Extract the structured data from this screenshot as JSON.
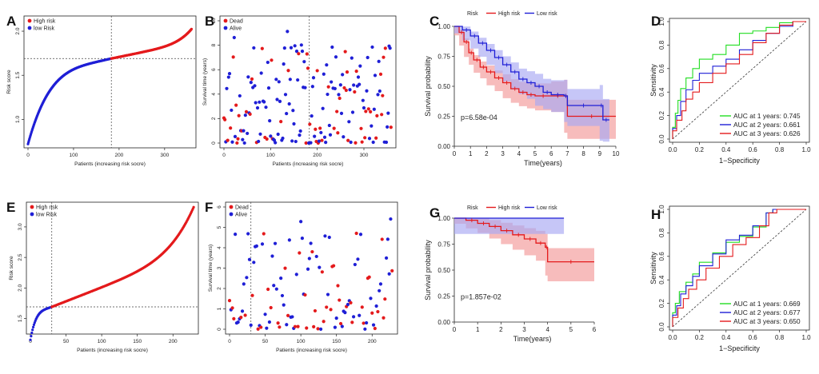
{
  "colors": {
    "red": "#e41a1c",
    "blue": "#1f1fd6",
    "green": "#22dd22",
    "redfill": "#f4a0a0",
    "bluefill": "#a7a7f2",
    "axis": "#222222"
  },
  "panels": [
    {
      "id": "A",
      "row": 0,
      "type": "riskcurve",
      "n": 360,
      "cut": 183,
      "ymin": 0.75,
      "ymax": 2.1,
      "vmin": 0.72,
      "vcut": 1.69,
      "vmax": 2.03,
      "xticks": [
        0,
        100,
        200,
        300
      ],
      "yticks": [
        1.0,
        1.5,
        2.0
      ],
      "yticklabels": [
        "1.0",
        "1.5",
        "2.0"
      ],
      "ylabel": "Risk score",
      "xlabel": "Patients (increasing risk socre)",
      "legend": [
        {
          "label": "High risk",
          "color": "red"
        },
        {
          "label": "low Risk",
          "color": "blue"
        }
      ]
    },
    {
      "id": "B",
      "row": 0,
      "type": "survscatter",
      "n": 360,
      "cut": 183,
      "ymax": 10,
      "yticks": [
        0,
        2,
        4,
        6,
        8,
        10
      ],
      "xticks": [
        0,
        100,
        200,
        300
      ],
      "ylabel": "Survival time (years)",
      "xlabel": "Patients (increasing risk socre)",
      "legend": [
        {
          "label": "Dead",
          "color": "red"
        },
        {
          "label": "Alive",
          "color": "blue"
        }
      ]
    },
    {
      "id": "C",
      "row": 0,
      "type": "km",
      "xmax": 10,
      "xticks": [
        0,
        1,
        2,
        3,
        4,
        5,
        6,
        7,
        8,
        9,
        10
      ],
      "yticks": [
        0.0,
        0.25,
        0.5,
        0.75,
        1.0
      ],
      "yticklabels": [
        "0.00",
        "0.25",
        "0.50",
        "0.75",
        "1.00"
      ],
      "ylabel": "Survival probability",
      "xlabel": "Time(years)",
      "pvalue": "p=6.58e-04",
      "legend_title": "Risk",
      "legend": [
        "High risk",
        "Low risk"
      ],
      "high": [
        [
          0,
          1.0
        ],
        [
          0.3,
          0.95
        ],
        [
          0.6,
          0.87
        ],
        [
          0.9,
          0.78
        ],
        [
          1.2,
          0.72
        ],
        [
          1.6,
          0.66
        ],
        [
          2.0,
          0.62
        ],
        [
          2.5,
          0.57
        ],
        [
          3.0,
          0.53
        ],
        [
          3.5,
          0.48
        ],
        [
          4.0,
          0.45
        ],
        [
          4.5,
          0.43
        ],
        [
          5.0,
          0.42
        ],
        [
          6.0,
          0.42
        ],
        [
          6.8,
          0.42
        ],
        [
          7.0,
          0.25
        ],
        [
          10.0,
          0.25
        ]
      ],
      "low": [
        [
          0,
          1.0
        ],
        [
          0.5,
          0.97
        ],
        [
          1.0,
          0.92
        ],
        [
          1.5,
          0.86
        ],
        [
          2.0,
          0.8
        ],
        [
          2.5,
          0.74
        ],
        [
          3.0,
          0.68
        ],
        [
          3.5,
          0.62
        ],
        [
          4.0,
          0.56
        ],
        [
          4.5,
          0.53
        ],
        [
          5.0,
          0.5
        ],
        [
          5.5,
          0.45
        ],
        [
          6.0,
          0.43
        ],
        [
          6.8,
          0.42
        ],
        [
          7.0,
          0.34
        ],
        [
          9.0,
          0.34
        ],
        [
          9.2,
          0.22
        ],
        [
          9.6,
          0.22
        ]
      ]
    },
    {
      "id": "D",
      "row": 0,
      "type": "roc",
      "xticks": [
        0.0,
        0.2,
        0.4,
        0.6,
        0.8,
        1.0
      ],
      "yticks": [
        0.0,
        0.2,
        0.4,
        0.6,
        0.8,
        1.0
      ],
      "xlabel": "1−Specificity",
      "ylabel": "Sensitivity",
      "series": [
        {
          "name": "AUC at 1 years: 0.745",
          "color": "green",
          "pts": [
            [
              0,
              0
            ],
            [
              0.02,
              0.1
            ],
            [
              0.04,
              0.22
            ],
            [
              0.06,
              0.33
            ],
            [
              0.1,
              0.43
            ],
            [
              0.15,
              0.52
            ],
            [
              0.2,
              0.6
            ],
            [
              0.3,
              0.68
            ],
            [
              0.4,
              0.72
            ],
            [
              0.5,
              0.8
            ],
            [
              0.6,
              0.9
            ],
            [
              0.7,
              0.92
            ],
            [
              0.8,
              0.95
            ],
            [
              0.9,
              0.99
            ],
            [
              1,
              1
            ]
          ]
        },
        {
          "name": "AUC at 2 years: 0.661",
          "color": "blue",
          "pts": [
            [
              0,
              0
            ],
            [
              0.03,
              0.09
            ],
            [
              0.06,
              0.2
            ],
            [
              0.1,
              0.32
            ],
            [
              0.15,
              0.42
            ],
            [
              0.2,
              0.5
            ],
            [
              0.3,
              0.56
            ],
            [
              0.4,
              0.62
            ],
            [
              0.5,
              0.68
            ],
            [
              0.6,
              0.76
            ],
            [
              0.7,
              0.84
            ],
            [
              0.8,
              0.9
            ],
            [
              0.9,
              0.96
            ],
            [
              1,
              1
            ]
          ]
        },
        {
          "name": "AUC at 3 years: 0.626",
          "color": "red",
          "pts": [
            [
              0,
              0
            ],
            [
              0.03,
              0.07
            ],
            [
              0.07,
              0.16
            ],
            [
              0.1,
              0.24
            ],
            [
              0.15,
              0.34
            ],
            [
              0.2,
              0.4
            ],
            [
              0.3,
              0.48
            ],
            [
              0.4,
              0.56
            ],
            [
              0.5,
              0.64
            ],
            [
              0.6,
              0.72
            ],
            [
              0.7,
              0.82
            ],
            [
              0.8,
              0.9
            ],
            [
              0.9,
              0.97
            ],
            [
              1,
              1
            ]
          ]
        }
      ]
    },
    {
      "id": "E",
      "row": 1,
      "type": "riskcurve",
      "n": 230,
      "cut": 30,
      "ymin": 1.35,
      "ymax": 3.3,
      "vmin": 1.15,
      "vcut": 1.69,
      "vmax": 3.35,
      "xticks": [
        0,
        50,
        100,
        150,
        200
      ],
      "yticks": [
        1.5,
        2.0,
        2.5,
        3.0
      ],
      "yticklabels": [
        "1.5",
        "2.0",
        "2.5",
        "3.0"
      ],
      "ylabel": "Risk score",
      "xlabel": "Patients (increasing risk socre)",
      "legend": [
        {
          "label": "High risk",
          "color": "red"
        },
        {
          "label": "low Risk",
          "color": "blue"
        }
      ]
    },
    {
      "id": "F",
      "row": 1,
      "type": "survscatter",
      "n": 230,
      "cut": 30,
      "ymax": 6,
      "yticks": [
        0,
        1,
        2,
        3,
        4,
        5,
        6
      ],
      "xticks": [
        0,
        50,
        100,
        150,
        200
      ],
      "ylabel": "Survival time (years)",
      "xlabel": "Patients (increasing risk socre)",
      "legend": [
        {
          "label": "Dead",
          "color": "red"
        },
        {
          "label": "Alive",
          "color": "blue"
        }
      ]
    },
    {
      "id": "G",
      "row": 1,
      "type": "km",
      "xmax": 6,
      "xticks": [
        0,
        1,
        2,
        3,
        4,
        5,
        6
      ],
      "yticks": [
        0.0,
        0.25,
        0.5,
        0.75,
        1.0
      ],
      "yticklabels": [
        "0.00",
        "0.25",
        "0.50",
        "0.75",
        "1.00"
      ],
      "ylabel": "Survival probability",
      "xlabel": "Time(years)",
      "pvalue": "p=1.857e-02",
      "legend_title": "Risk",
      "legend": [
        "High risk",
        "Low risk"
      ],
      "high": [
        [
          0,
          1.0
        ],
        [
          0.5,
          0.98
        ],
        [
          1.0,
          0.95
        ],
        [
          1.5,
          0.92
        ],
        [
          2.0,
          0.88
        ],
        [
          2.5,
          0.84
        ],
        [
          3.0,
          0.8
        ],
        [
          3.5,
          0.76
        ],
        [
          3.9,
          0.72
        ],
        [
          4.0,
          0.58
        ],
        [
          6.0,
          0.58
        ]
      ],
      "low": [
        [
          0,
          1.0
        ],
        [
          4.7,
          1.0
        ]
      ]
    },
    {
      "id": "H",
      "row": 1,
      "type": "roc",
      "xticks": [
        0.0,
        0.2,
        0.4,
        0.6,
        0.8,
        1.0
      ],
      "yticks": [
        0.0,
        0.2,
        0.4,
        0.6,
        0.8,
        1.0
      ],
      "xlabel": "1−Specificity",
      "ylabel": "Sensitivity",
      "series": [
        {
          "name": "AUC at 1 years: 0.669",
          "color": "green",
          "pts": [
            [
              0,
              0
            ],
            [
              0.02,
              0.12
            ],
            [
              0.05,
              0.2
            ],
            [
              0.1,
              0.3
            ],
            [
              0.15,
              0.38
            ],
            [
              0.2,
              0.45
            ],
            [
              0.3,
              0.55
            ],
            [
              0.4,
              0.63
            ],
            [
              0.5,
              0.72
            ],
            [
              0.6,
              0.77
            ],
            [
              0.7,
              0.85
            ],
            [
              0.75,
              0.97
            ],
            [
              1,
              1
            ]
          ]
        },
        {
          "name": "AUC at 2 years: 0.677",
          "color": "blue",
          "pts": [
            [
              0,
              0
            ],
            [
              0.03,
              0.1
            ],
            [
              0.06,
              0.18
            ],
            [
              0.1,
              0.28
            ],
            [
              0.15,
              0.35
            ],
            [
              0.2,
              0.43
            ],
            [
              0.3,
              0.52
            ],
            [
              0.4,
              0.62
            ],
            [
              0.5,
              0.74
            ],
            [
              0.6,
              0.78
            ],
            [
              0.7,
              0.86
            ],
            [
              0.75,
              0.97
            ],
            [
              1,
              1
            ]
          ]
        },
        {
          "name": "AUC at 3 years: 0.650",
          "color": "red",
          "pts": [
            [
              0,
              0
            ],
            [
              0.04,
              0.08
            ],
            [
              0.08,
              0.16
            ],
            [
              0.12,
              0.24
            ],
            [
              0.18,
              0.32
            ],
            [
              0.25,
              0.4
            ],
            [
              0.35,
              0.5
            ],
            [
              0.45,
              0.6
            ],
            [
              0.55,
              0.7
            ],
            [
              0.65,
              0.76
            ],
            [
              0.72,
              0.86
            ],
            [
              0.78,
              0.97
            ],
            [
              1,
              1
            ]
          ]
        }
      ]
    }
  ]
}
